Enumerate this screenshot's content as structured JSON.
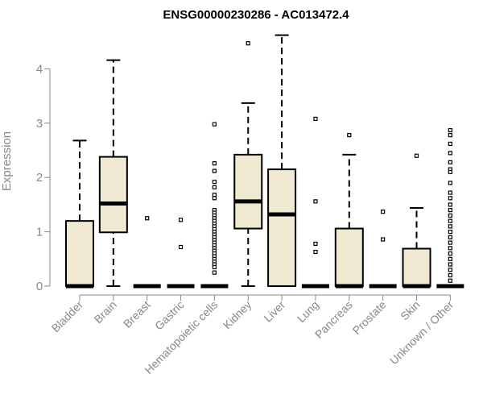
{
  "chart_data": {
    "type": "boxplot",
    "title": "ENSG00000230286 - AC013472.4",
    "ylabel": "Expression",
    "xlabel": "",
    "ylim": [
      0,
      4.6
    ],
    "yticks": [
      0,
      1,
      2,
      3,
      4
    ],
    "grid": false,
    "box_fill": "#efe9d2",
    "stroke_color": "#000000",
    "categories": [
      "Bladder",
      "Brain",
      "Breast",
      "Gastric",
      "Hematopoietic cells",
      "Kidney",
      "Liver",
      "Lung",
      "Pancreas",
      "Prostate",
      "Skin",
      "Unknown / Other"
    ],
    "boxes": [
      {
        "category": "Bladder",
        "whisker_low": 0,
        "q1": 0,
        "median": 0,
        "q3": 1.2,
        "whisker_high": 2.68,
        "outliers": []
      },
      {
        "category": "Brain",
        "whisker_low": 0,
        "q1": 0.99,
        "median": 1.52,
        "q3": 2.38,
        "whisker_high": 4.16,
        "outliers": []
      },
      {
        "category": "Breast",
        "whisker_low": 0,
        "q1": 0,
        "median": 0,
        "q3": 0,
        "whisker_high": 0,
        "outliers": [
          1.25
        ]
      },
      {
        "category": "Gastric",
        "whisker_low": 0,
        "q1": 0,
        "median": 0,
        "q3": 0,
        "whisker_high": 0,
        "outliers": [
          1.22,
          0.72
        ]
      },
      {
        "category": "Hematopoietic cells",
        "whisker_low": 0,
        "q1": 0,
        "median": 0,
        "q3": 0,
        "whisker_high": 0,
        "outliers": [
          2.98,
          2.26,
          2.12,
          1.92,
          1.82,
          1.68,
          1.62,
          1.4,
          1.35,
          1.3,
          1.25,
          1.2,
          1.15,
          1.1,
          1.05,
          1.0,
          0.95,
          0.9,
          0.85,
          0.8,
          0.75,
          0.7,
          0.65,
          0.6,
          0.55,
          0.5,
          0.45,
          0.4,
          0.35,
          0.25
        ]
      },
      {
        "category": "Kidney",
        "whisker_low": 0,
        "q1": 1.06,
        "median": 1.56,
        "q3": 2.42,
        "whisker_high": 3.37,
        "outliers": [
          4.47
        ]
      },
      {
        "category": "Liver",
        "whisker_low": 0,
        "q1": 0,
        "median": 1.32,
        "q3": 2.15,
        "whisker_high": 4.62,
        "outliers": []
      },
      {
        "category": "Lung",
        "whisker_low": 0,
        "q1": 0,
        "median": 0,
        "q3": 0,
        "whisker_high": 0,
        "outliers": [
          3.08,
          1.56,
          0.78,
          0.63
        ]
      },
      {
        "category": "Pancreas",
        "whisker_low": 0,
        "q1": 0,
        "median": 0,
        "q3": 1.06,
        "whisker_high": 2.42,
        "outliers": [
          2.78
        ]
      },
      {
        "category": "Prostate",
        "whisker_low": 0,
        "q1": 0,
        "median": 0,
        "q3": 0,
        "whisker_high": 0,
        "outliers": [
          1.37,
          0.86
        ]
      },
      {
        "category": "Skin",
        "whisker_low": 0,
        "q1": 0,
        "median": 0,
        "q3": 0.69,
        "whisker_high": 1.44,
        "outliers": [
          2.4
        ]
      },
      {
        "category": "Unknown / Other",
        "whisker_low": 0,
        "q1": 0,
        "median": 0,
        "q3": 0,
        "whisker_high": 0,
        "outliers": [
          2.87,
          2.78,
          2.62,
          2.45,
          2.28,
          2.15,
          2.1,
          1.9,
          1.72,
          1.62,
          1.5,
          1.4,
          1.3,
          1.2,
          1.1,
          1.0,
          0.9,
          0.8,
          0.7,
          0.6,
          0.5,
          0.4,
          0.3,
          0.2,
          0.1
        ]
      }
    ]
  }
}
